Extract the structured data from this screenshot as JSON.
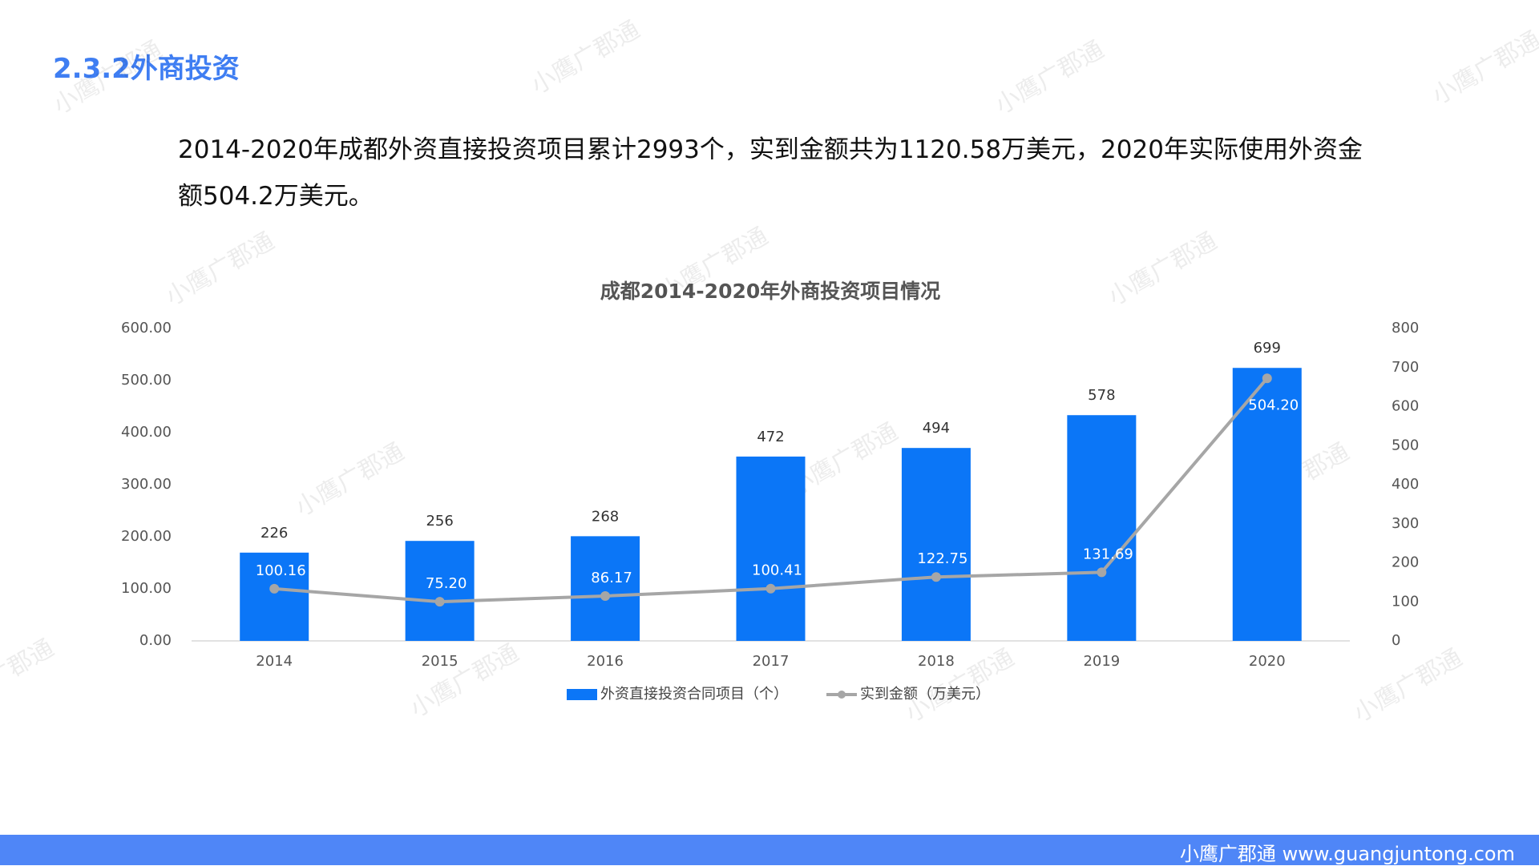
{
  "header": {
    "title": "2.3.2外商投资"
  },
  "summary": "2014-2020年成都外资直接投资项目累计2993个，实到金额共为1120.58万美元，2020年实际使用外资金额504.2万美元。",
  "watermark": "小鹰广郡通",
  "footer": "小鹰广郡通 www.guangjuntong.com",
  "chart_data": {
    "type": "bar",
    "title": "成都2014-2020年外商投资项目情况",
    "categories": [
      "2014",
      "2015",
      "2016",
      "2017",
      "2018",
      "2019",
      "2020"
    ],
    "series": [
      {
        "name": "外资直接投资合同项目（个）",
        "type": "bar",
        "axis": "y2",
        "color": "#0b76f7",
        "values": [
          226,
          256,
          268,
          472,
          494,
          578,
          699
        ]
      },
      {
        "name": "实到金额（万美元）",
        "type": "line",
        "color": "#a6a6a6",
        "values": [
          100.16,
          75.2,
          86.17,
          100.41,
          122.75,
          131.69,
          504.2
        ],
        "value_labels": [
          "100.16",
          "75.20",
          "86.17",
          "100.41",
          "122.75",
          "131.69",
          "504.20"
        ]
      }
    ],
    "ylim": [
      0,
      600
    ],
    "yticks": [
      {
        "value": 0,
        "label": "0.00"
      },
      {
        "value": 100,
        "label": "100.00"
      },
      {
        "value": 200,
        "label": "200.00"
      },
      {
        "value": 300,
        "label": "300.00"
      },
      {
        "value": 400,
        "label": "400.00"
      },
      {
        "value": 500,
        "label": "500.00"
      },
      {
        "value": 600,
        "label": "600.00"
      }
    ],
    "y2lim": [
      0,
      800
    ],
    "y2ticks": [
      0,
      100,
      200,
      300,
      400,
      500,
      600,
      700,
      800
    ],
    "legend": "bottom"
  }
}
